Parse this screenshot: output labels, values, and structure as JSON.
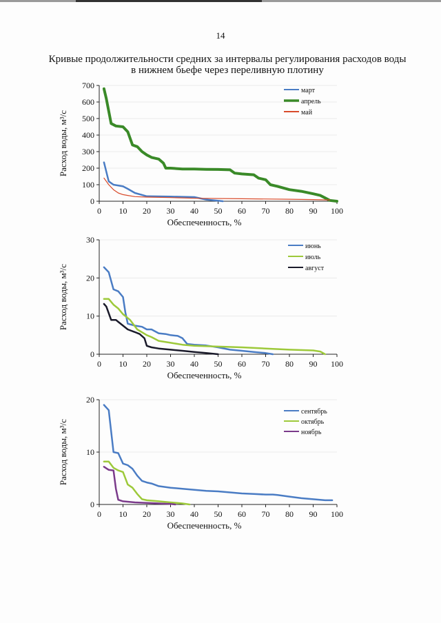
{
  "page": {
    "number": "14",
    "title_line1": "Кривые продолжительности средних за интервалы регулирования расходов воды",
    "title_line2": "в нижнем бьефе через переливную плотину"
  },
  "chart_data": [
    {
      "type": "line",
      "xlabel": "Обеспеченность, %",
      "ylabel": "Расход воды, м³/с",
      "xlim": [
        0,
        100
      ],
      "ylim": [
        0,
        700
      ],
      "xticks": [
        0,
        10,
        20,
        30,
        40,
        50,
        60,
        70,
        80,
        90,
        100
      ],
      "yticks": [
        0,
        100,
        200,
        300,
        400,
        500,
        600,
        700
      ],
      "legend_position": "top-right",
      "series": [
        {
          "name": "март",
          "color": "#4a7cc4",
          "width": 2.5,
          "x": [
            2,
            4,
            6,
            10,
            12,
            15,
            20,
            30,
            40,
            45,
            50,
            52
          ],
          "y": [
            235,
            120,
            100,
            90,
            75,
            50,
            30,
            28,
            25,
            10,
            3,
            0
          ]
        },
        {
          "name": "апрель",
          "color": "#3a8a28",
          "width": 4,
          "x": [
            2,
            3,
            5,
            7,
            10,
            12,
            14,
            16,
            18,
            20,
            22,
            25,
            27,
            28,
            30,
            35,
            40,
            45,
            50,
            55,
            57,
            60,
            65,
            67,
            70,
            72,
            75,
            80,
            85,
            90,
            93,
            95,
            97,
            100
          ],
          "y": [
            680,
            620,
            470,
            455,
            450,
            420,
            340,
            330,
            300,
            280,
            265,
            255,
            230,
            200,
            200,
            195,
            195,
            193,
            192,
            190,
            170,
            165,
            160,
            140,
            130,
            100,
            90,
            70,
            60,
            45,
            35,
            20,
            5,
            0
          ]
        },
        {
          "name": "май",
          "color": "#d84a2a",
          "width": 1.2,
          "x": [
            2,
            4,
            6,
            8,
            10,
            12,
            15,
            20,
            30,
            40,
            60,
            80,
            90,
            97
          ],
          "y": [
            140,
            100,
            70,
            50,
            40,
            35,
            28,
            25,
            22,
            18,
            15,
            12,
            10,
            8
          ]
        }
      ]
    },
    {
      "type": "line",
      "xlabel": "Обеспеченность, %",
      "ylabel": "Расход воды, м³/с",
      "xlim": [
        0,
        100
      ],
      "ylim": [
        0,
        30
      ],
      "xticks": [
        0,
        10,
        20,
        30,
        40,
        50,
        60,
        70,
        80,
        90,
        100
      ],
      "yticks": [
        0,
        10,
        20,
        30
      ],
      "legend_position": "top-right",
      "series": [
        {
          "name": "июнь",
          "color": "#4a7cc4",
          "width": 2.5,
          "x": [
            2,
            4,
            6,
            8,
            10,
            11,
            12,
            15,
            18,
            20,
            22,
            25,
            28,
            30,
            33,
            35,
            37,
            40,
            45,
            50,
            55,
            60,
            65,
            70,
            73
          ],
          "y": [
            22.8,
            21.5,
            17,
            16.5,
            15,
            11,
            8,
            7.5,
            7.2,
            6.5,
            6.5,
            5.5,
            5.3,
            5.0,
            4.8,
            4.2,
            2.7,
            2.5,
            2.3,
            1.8,
            1.2,
            0.9,
            0.6,
            0.3,
            0
          ]
        },
        {
          "name": "июль",
          "color": "#9dc93a",
          "width": 2.5,
          "x": [
            2,
            4,
            6,
            8,
            10,
            13,
            16,
            20,
            22,
            25,
            30,
            35,
            40,
            50,
            60,
            70,
            80,
            90,
            93,
            95
          ],
          "y": [
            14.5,
            14.5,
            13,
            12,
            10.5,
            9,
            6.5,
            5,
            4.5,
            3.5,
            3.0,
            2.5,
            2.2,
            2.0,
            1.8,
            1.5,
            1.2,
            1.0,
            0.7,
            0
          ]
        },
        {
          "name": "август",
          "color": "#1a1a2a",
          "width": 2.5,
          "x": [
            2,
            3,
            5,
            7,
            8,
            10,
            12,
            15,
            17,
            19,
            20,
            22,
            25,
            30,
            35,
            40,
            45,
            50
          ],
          "y": [
            13.2,
            12.5,
            9,
            9,
            8.5,
            7.5,
            6.5,
            5.8,
            5.3,
            4.2,
            2.2,
            1.8,
            1.5,
            1.2,
            0.9,
            0.6,
            0.3,
            0
          ]
        }
      ]
    },
    {
      "type": "line",
      "xlabel": "Обеспеченность, %",
      "ylabel": "Расход воды, м³/с",
      "xlim": [
        0,
        100
      ],
      "ylim": [
        0,
        20
      ],
      "xticks": [
        0,
        10,
        20,
        30,
        40,
        50,
        60,
        70,
        80,
        90,
        100
      ],
      "yticks": [
        0,
        10,
        20
      ],
      "legend_position": "top-right",
      "series": [
        {
          "name": "сентябрь",
          "color": "#4a7cc4",
          "width": 2.5,
          "x": [
            2,
            4,
            6,
            8,
            10,
            12,
            14,
            16,
            18,
            20,
            22,
            25,
            30,
            35,
            40,
            45,
            50,
            55,
            60,
            65,
            70,
            73,
            75,
            80,
            85,
            90,
            95,
            98
          ],
          "y": [
            19,
            18,
            10,
            9.8,
            7.8,
            7.5,
            6.8,
            5.5,
            4.5,
            4.2,
            4.0,
            3.5,
            3.2,
            3.0,
            2.8,
            2.6,
            2.5,
            2.3,
            2.1,
            2.0,
            1.9,
            1.9,
            1.8,
            1.5,
            1.2,
            1.0,
            0.8,
            0.8
          ]
        },
        {
          "name": "октябрь",
          "color": "#9dc93a",
          "width": 2.5,
          "x": [
            2,
            4,
            6,
            8,
            10,
            12,
            14,
            16,
            18,
            20,
            25,
            30,
            35,
            38
          ],
          "y": [
            8.2,
            8.2,
            7,
            6.5,
            6.2,
            3.8,
            3.2,
            2.0,
            1.0,
            0.8,
            0.6,
            0.4,
            0.2,
            0
          ]
        },
        {
          "name": "ноябрь",
          "color": "#7a3a8a",
          "width": 2.5,
          "x": [
            2,
            4,
            6,
            7,
            8,
            10,
            15,
            20,
            25,
            30,
            32
          ],
          "y": [
            7.2,
            6.6,
            6.5,
            3.0,
            0.9,
            0.6,
            0.4,
            0.3,
            0.2,
            0.1,
            0
          ]
        }
      ]
    }
  ]
}
